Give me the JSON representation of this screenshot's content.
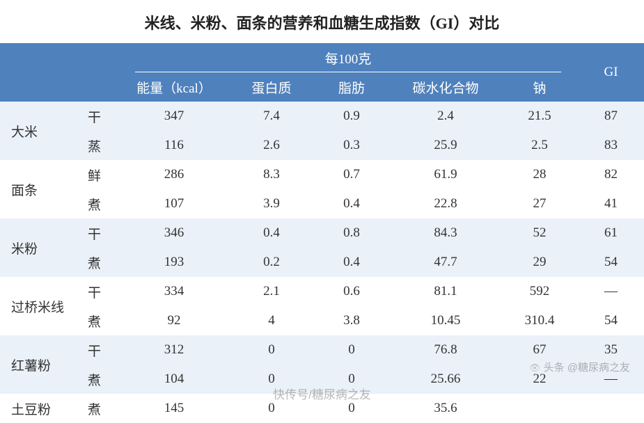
{
  "title": "米线、米粉、面条的营养和血糖生成指数（GI）对比",
  "header": {
    "group_label": "每100克",
    "gi_label": "GI",
    "cols": {
      "energy": "能量（kcal）",
      "protein": "蛋白质",
      "fat": "脂肪",
      "carb": "碳水化合物",
      "sodium": "钠"
    }
  },
  "colors": {
    "header_bg": "#4f81bd",
    "header_fg": "#ffffff",
    "band_light": "#eaf1f8",
    "band_white": "#ffffff",
    "text": "#333333"
  },
  "categories": [
    {
      "name": "大米",
      "rows": [
        {
          "sub": "干",
          "energy": "347",
          "protein": "7.4",
          "fat": "0.9",
          "carb": "2.4",
          "sodium": "21.5",
          "gi": "87"
        },
        {
          "sub": "蒸",
          "energy": "116",
          "protein": "2.6",
          "fat": "0.3",
          "carb": "25.9",
          "sodium": "2.5",
          "gi": "83"
        }
      ]
    },
    {
      "name": "面条",
      "rows": [
        {
          "sub": "鲜",
          "energy": "286",
          "protein": "8.3",
          "fat": "0.7",
          "carb": "61.9",
          "sodium": "28",
          "gi": "82"
        },
        {
          "sub": "煮",
          "energy": "107",
          "protein": "3.9",
          "fat": "0.4",
          "carb": "22.8",
          "sodium": "27",
          "gi": "41"
        }
      ]
    },
    {
      "name": "米粉",
      "rows": [
        {
          "sub": "干",
          "energy": "346",
          "protein": "0.4",
          "fat": "0.8",
          "carb": "84.3",
          "sodium": "52",
          "gi": "61"
        },
        {
          "sub": "煮",
          "energy": "193",
          "protein": "0.2",
          "fat": "0.4",
          "carb": "47.7",
          "sodium": "29",
          "gi": "54"
        }
      ]
    },
    {
      "name": "过桥米线",
      "rows": [
        {
          "sub": "干",
          "energy": "334",
          "protein": "2.1",
          "fat": "0.6",
          "carb": "81.1",
          "sodium": "592",
          "gi": "—"
        },
        {
          "sub": "煮",
          "energy": "92",
          "protein": "4",
          "fat": "3.8",
          "carb": "10.45",
          "sodium": "310.4",
          "gi": "54"
        }
      ]
    },
    {
      "name": "红薯粉",
      "rows": [
        {
          "sub": "干",
          "energy": "312",
          "protein": "0",
          "fat": "0",
          "carb": "76.8",
          "sodium": "67",
          "gi": "35"
        },
        {
          "sub": "煮",
          "energy": "104",
          "protein": "0",
          "fat": "0",
          "carb": "25.66",
          "sodium": "22",
          "gi": "—"
        }
      ]
    },
    {
      "name": "土豆粉",
      "rows": [
        {
          "sub": "煮",
          "energy": "145",
          "protein": "0",
          "fat": "0",
          "carb": "35.6",
          "sodium": "",
          "gi": ""
        }
      ]
    }
  ],
  "watermark_side": "头条 @糖尿病之友",
  "watermark_footer": "快传号/糖尿病之友"
}
